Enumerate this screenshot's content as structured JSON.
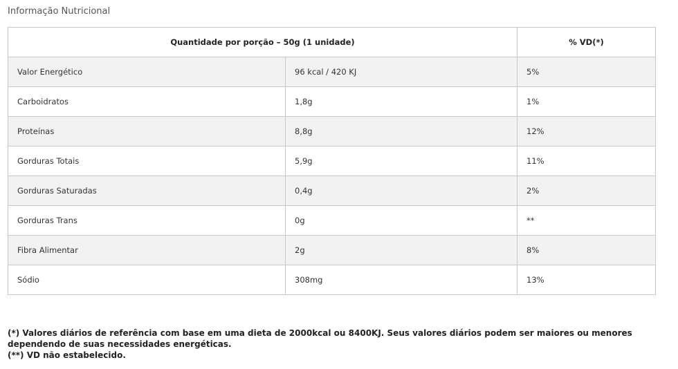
{
  "title": "Informação Nutricional",
  "table": {
    "headers": [
      "Quantidade por porção – 50g (1 unidade)",
      "% VD(*)"
    ],
    "rows": [
      {
        "name": "Valor Energético",
        "amount": "96 kcal / 420 KJ",
        "vd": "5%"
      },
      {
        "name": "Carboidratos",
        "amount": "1,8g",
        "vd": "1%"
      },
      {
        "name": "Proteínas",
        "amount": "8,8g",
        "vd": "12%"
      },
      {
        "name": "Gorduras Totais",
        "amount": "5,9g",
        "vd": "11%"
      },
      {
        "name": "Gorduras Saturadas",
        "amount": "0,4g",
        "vd": "2%"
      },
      {
        "name": "Gorduras Trans",
        "amount": "0g",
        "vd": "**"
      },
      {
        "name": "Fibra Alimentar",
        "amount": "2g",
        "vd": "8%"
      },
      {
        "name": "Sódio",
        "amount": "308mg",
        "vd": "13%"
      }
    ]
  },
  "notes": [
    "(*) Valores diários de referência com base em uma dieta de 2000kcal ou 8400KJ. Seus valores diários podem ser maiores ou menores dependendo de suas necessidades energéticas.",
    "(**) VD não estabelecido."
  ]
}
